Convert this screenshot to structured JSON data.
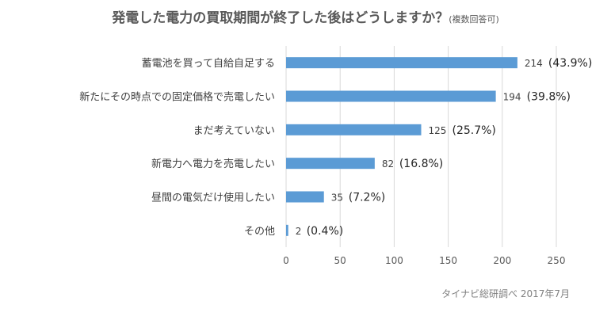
{
  "title": "発電した電力の買取期間が終了した後はどうしますか？",
  "title_note": "(複数回答可)",
  "source": "タイナビ総研調べ 2017年7月",
  "colors": {
    "bar": "#5B9BD5",
    "grid": "#D9D9D9"
  },
  "chart_data": {
    "type": "bar",
    "orientation": "horizontal",
    "categories": [
      "蓄電池を買って自給自足する",
      "新たにその時点での固定価格で売電したい",
      "まだ考えていない",
      "新電力へ電力を売電したい",
      "昼間の電気だけ使用したい",
      "その他"
    ],
    "values": [
      214,
      194,
      125,
      82,
      35,
      2
    ],
    "percent_labels": [
      "(43.9%)",
      "(39.8%)",
      "(25.7%)",
      "(16.8%)",
      "(7.2%)",
      "(0.4%)"
    ],
    "xlim": [
      0,
      250
    ],
    "xticks": [
      0,
      50,
      100,
      150,
      200,
      250
    ],
    "grid": true,
    "legend": "none"
  }
}
